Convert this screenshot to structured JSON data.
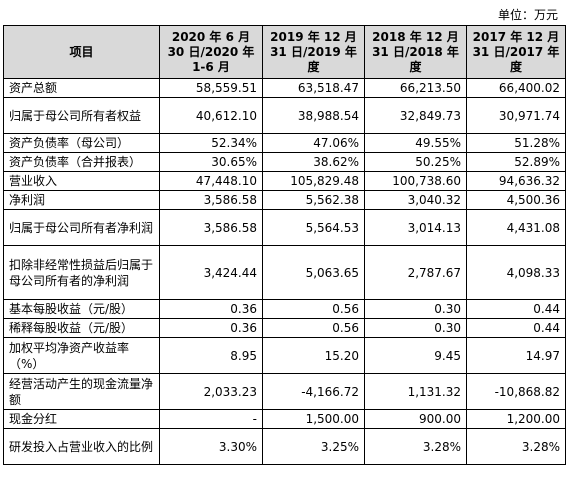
{
  "unit_label": "单位：万元",
  "table": {
    "headers": [
      "项目",
      "2020 年 6 月 30 日/2020 年 1-6 月",
      "2019 年 12 月 31 日/2019 年度",
      "2018 年 12 月 31 日/2018 年度",
      "2017 年 12 月 31 日/2017 年度"
    ],
    "rows": [
      {
        "label": "资产总额",
        "values": [
          "58,559.51",
          "63,518.47",
          "66,213.50",
          "66,400.02"
        ]
      },
      {
        "label": "归属于母公司所有者权益",
        "values": [
          "40,612.10",
          "38,988.54",
          "32,849.73",
          "30,971.74"
        ]
      },
      {
        "label": "资产负债率（母公司）",
        "values": [
          "52.34%",
          "47.06%",
          "49.55%",
          "51.28%"
        ]
      },
      {
        "label": "资产负债率（合并报表）",
        "values": [
          "30.65%",
          "38.62%",
          "50.25%",
          "52.89%"
        ]
      },
      {
        "label": "营业收入",
        "values": [
          "47,448.10",
          "105,829.48",
          "100,738.60",
          "94,636.32"
        ]
      },
      {
        "label": "净利润",
        "values": [
          "3,586.58",
          "5,562.38",
          "3,040.32",
          "4,500.36"
        ]
      },
      {
        "label": "归属于母公司所有者净利润",
        "values": [
          "3,586.58",
          "5,564.53",
          "3,014.13",
          "4,431.08"
        ]
      },
      {
        "label": "扣除非经常性损益后归属于母公司所有者的净利润",
        "values": [
          "3,424.44",
          "5,063.65",
          "2,787.67",
          "4,098.33"
        ]
      },
      {
        "label": "基本每股收益（元/股）",
        "values": [
          "0.36",
          "0.56",
          "0.30",
          "0.44"
        ]
      },
      {
        "label": "稀释每股收益（元/股）",
        "values": [
          "0.36",
          "0.56",
          "0.30",
          "0.44"
        ]
      },
      {
        "label": "加权平均净资产收益率（%）",
        "values": [
          "8.95",
          "15.20",
          "9.45",
          "14.97"
        ]
      },
      {
        "label": "经营活动产生的现金流量净额",
        "values": [
          "2,033.23",
          "-4,166.72",
          "1,131.32",
          "-10,868.82"
        ]
      },
      {
        "label": "现金分红",
        "values": [
          "-",
          "1,500.00",
          "900.00",
          "1,200.00"
        ]
      },
      {
        "label": "研发投入占营业收入的比例",
        "values": [
          "3.30%",
          "3.25%",
          "3.28%",
          "3.28%"
        ]
      }
    ]
  }
}
